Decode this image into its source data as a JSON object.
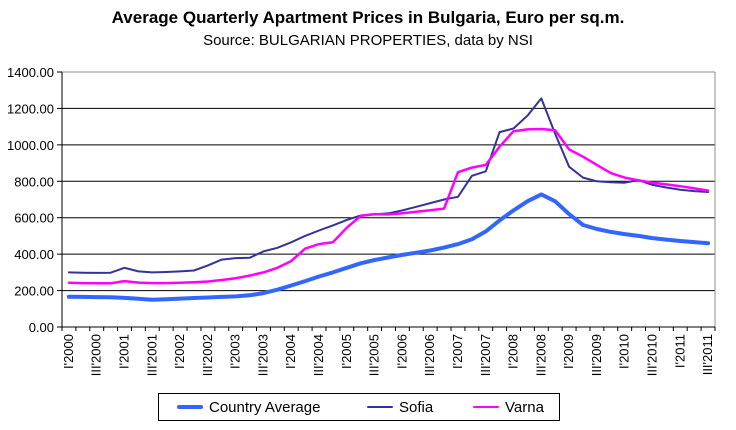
{
  "chart_data": {
    "type": "line",
    "title": "Average Quarterly Apartment Prices in Bulgaria, Euro per sq.m.",
    "subtitle": "Source: BULGARIAN PROPERTIES, data by NSI",
    "ylim": [
      0,
      1400
    ],
    "y_tick_step": 200,
    "y_tick_labels": [
      "0.00",
      "200.00",
      "400.00",
      "600.00",
      "800.00",
      "1000.00",
      "1200.00",
      "1400.00"
    ],
    "x_tick_labels": [
      "I'2000",
      "III'2000",
      "I'2001",
      "III'2001",
      "I'2002",
      "III'2002",
      "I'2003",
      "III'2003",
      "I'2004",
      "III'2004",
      "I'2005",
      "III'2005",
      "I'2006",
      "III'2006",
      "I'2007",
      "III'2007",
      "I'2008",
      "III'2008",
      "I'2009",
      "III'2009",
      "I'2010",
      "III'2010",
      "I'2011",
      "III'2011"
    ],
    "x_label_every_n_points": 2,
    "grid": "horizontal",
    "legend_position": "bottom",
    "series": [
      {
        "name": "Country Average",
        "color": "#3366FF",
        "width": 4,
        "values": [
          166,
          165,
          164,
          163,
          160,
          155,
          150,
          152,
          156,
          159,
          162,
          165,
          168,
          174,
          186,
          205,
          228,
          252,
          277,
          300,
          325,
          350,
          368,
          382,
          396,
          408,
          420,
          436,
          455,
          482,
          525,
          585,
          640,
          690,
          728,
          690,
          620,
          560,
          538,
          522,
          510,
          500,
          488,
          480,
          472,
          466,
          460
        ]
      },
      {
        "name": "Sofia",
        "color": "#333399",
        "width": 2,
        "values": [
          300,
          298,
          297,
          298,
          325,
          305,
          300,
          302,
          305,
          310,
          338,
          370,
          378,
          380,
          415,
          435,
          465,
          500,
          530,
          558,
          588,
          612,
          618,
          624,
          640,
          660,
          680,
          700,
          715,
          830,
          855,
          1070,
          1090,
          1160,
          1255,
          1060,
          880,
          820,
          800,
          795,
          792,
          806,
          780,
          766,
          754,
          746,
          741
        ]
      },
      {
        "name": "Varna",
        "color": "#FF00FF",
        "width": 2.5,
        "values": [
          243,
          241,
          240,
          240,
          252,
          244,
          241,
          241,
          243,
          246,
          250,
          258,
          268,
          282,
          300,
          325,
          362,
          430,
          455,
          465,
          545,
          610,
          620,
          618,
          625,
          633,
          641,
          650,
          850,
          875,
          890,
          990,
          1075,
          1085,
          1087,
          1080,
          975,
          935,
          890,
          845,
          820,
          805,
          792,
          783,
          773,
          761,
          749
        ]
      }
    ]
  }
}
